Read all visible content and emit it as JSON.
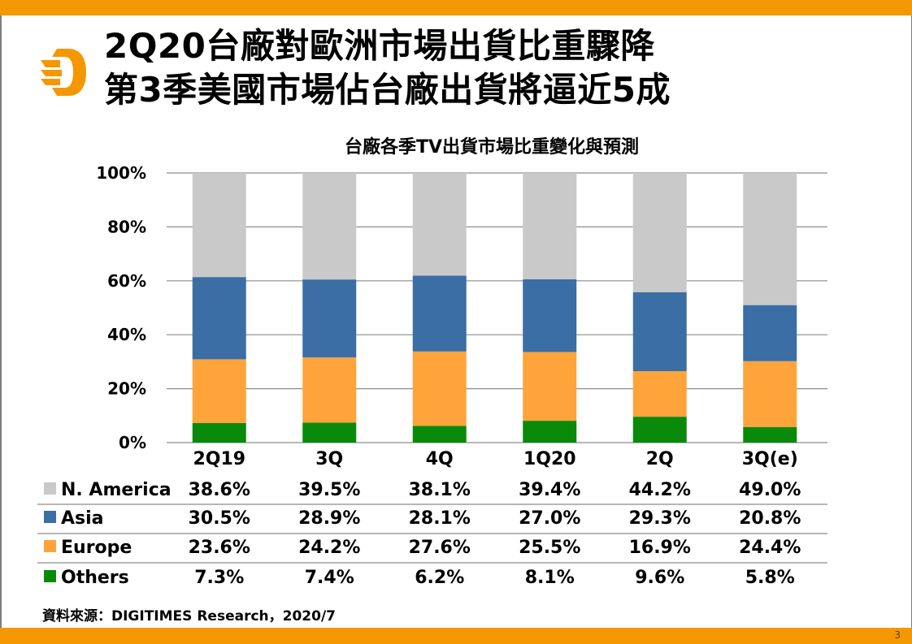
{
  "slide": {
    "title_line1": "2Q20台廠對歐洲市場出貨比重驟降",
    "title_line2": "第3季美國市場佔台廠出貨將逼近5成",
    "source": "資料來源：DIGITIMES Research，2020/7",
    "page_number": "3",
    "brand_color": "#F39800",
    "logo_icon": "digitimes-d-logo"
  },
  "chart_data": {
    "type": "bar",
    "stacked": true,
    "title": "台廠各季TV出貨市場比重變化與預測",
    "xlabel": "",
    "ylabel": "",
    "ylim": [
      0,
      100
    ],
    "yticks": [
      0,
      20,
      40,
      60,
      80,
      100
    ],
    "ytick_labels": [
      "0%",
      "20%",
      "40%",
      "60%",
      "80%",
      "100%"
    ],
    "grid": true,
    "legend_placement": "bottom-data-table",
    "categories": [
      "2Q19",
      "3Q",
      "4Q",
      "1Q20",
      "2Q",
      "3Q(e)"
    ],
    "series": [
      {
        "name": "N. America",
        "color": "#C9C9C9",
        "values": [
          38.6,
          39.5,
          38.1,
          39.4,
          44.2,
          49.0
        ],
        "labels": [
          "38.6%",
          "39.5%",
          "38.1%",
          "39.4%",
          "44.2%",
          "49.0%"
        ]
      },
      {
        "name": "Asia",
        "color": "#3A6EA5",
        "values": [
          30.5,
          28.9,
          28.1,
          27.0,
          29.3,
          20.8
        ],
        "labels": [
          "30.5%",
          "28.9%",
          "28.1%",
          "27.0%",
          "29.3%",
          "20.8%"
        ]
      },
      {
        "name": "Europe",
        "color": "#FFA43A",
        "values": [
          23.6,
          24.2,
          27.6,
          25.5,
          16.9,
          24.4
        ],
        "labels": [
          "23.6%",
          "24.2%",
          "27.6%",
          "25.5%",
          "16.9%",
          "24.4%"
        ]
      },
      {
        "name": "Others",
        "color": "#0A8A0A",
        "values": [
          7.3,
          7.4,
          6.2,
          8.1,
          9.6,
          5.8
        ],
        "labels": [
          "7.3%",
          "7.4%",
          "6.2%",
          "8.1%",
          "9.6%",
          "5.8%"
        ]
      }
    ],
    "stack_order_bottom_to_top": [
      "Others",
      "Europe",
      "Asia",
      "N. America"
    ]
  }
}
